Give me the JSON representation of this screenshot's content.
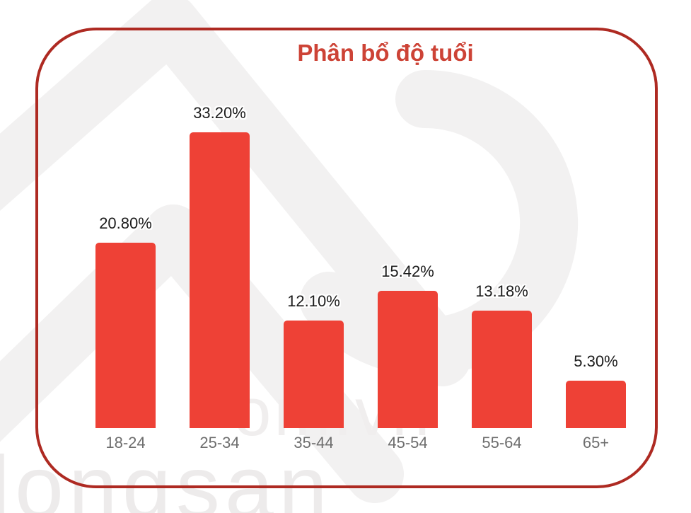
{
  "chart_data": {
    "type": "bar",
    "title": "Phân bổ độ tuổi",
    "categories": [
      "18-24",
      "25-34",
      "35-44",
      "45-54",
      "55-64",
      "65+"
    ],
    "values": [
      20.8,
      33.2,
      12.1,
      15.42,
      13.18,
      5.3
    ],
    "value_labels": [
      "20.80%",
      "33.20%",
      "12.10%",
      "15.42%",
      "13.18%",
      "5.30%"
    ],
    "xlabel": "",
    "ylabel": "",
    "ylim": [
      0,
      36
    ],
    "grid": false,
    "legend": false,
    "bar_color": "#ee4136",
    "value_label_color": "#1c1c1c",
    "tick_label_color": "#6e6e6e",
    "title_color": "#cd4336"
  },
  "frame": {
    "border_color": "#ae2a22"
  },
  "watermark": {
    "fragment_mid": "om.vn",
    "fragment_bottom": "dongsan",
    "shape_color": "#f2f1f1"
  }
}
